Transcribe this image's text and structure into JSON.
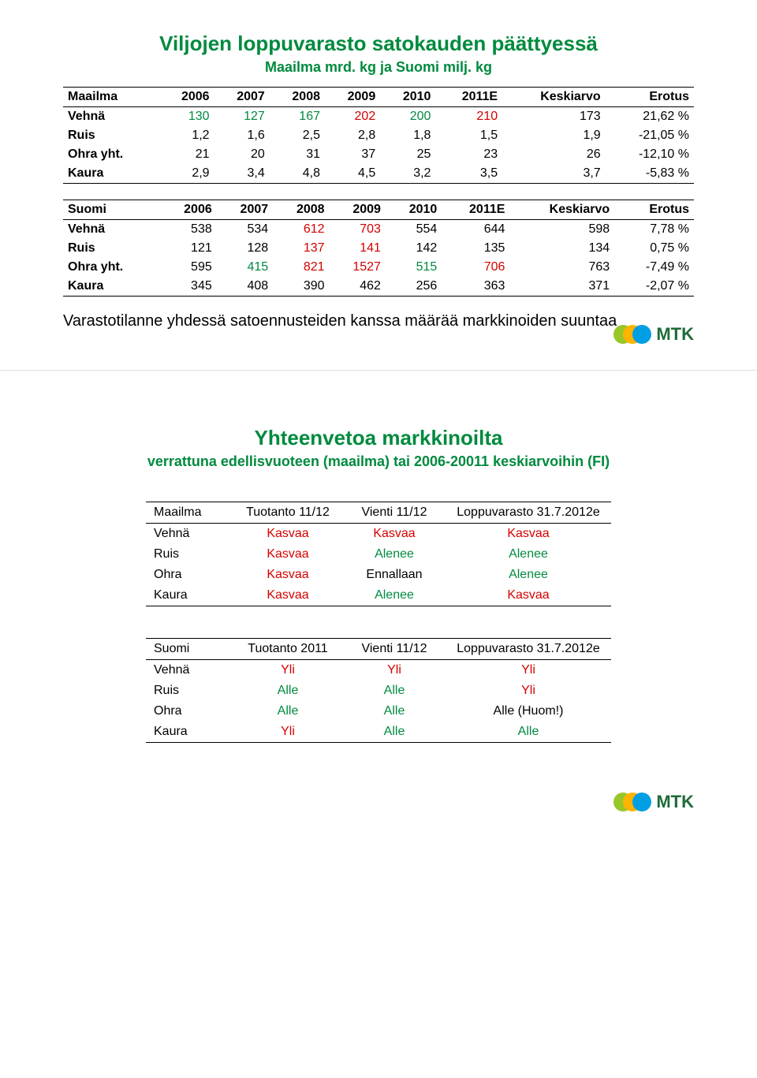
{
  "colors": {
    "green": "#008a3e",
    "red": "#d40000",
    "black": "#000000"
  },
  "slide1": {
    "title": "Viljojen loppuvarasto satokauden päättyessä",
    "subtitle": "Maailma mrd. kg ja Suomi milj. kg",
    "title_color": "#008a3e",
    "subtitle_color": "#008a3e",
    "table_world": {
      "columns": [
        "Maailma",
        "2006",
        "2007",
        "2008",
        "2009",
        "2010",
        "2011E",
        "Keskiarvo",
        "Erotus"
      ],
      "col_colors": [
        "black",
        "black",
        "black",
        "black",
        "black",
        "black",
        "black",
        "black",
        "black"
      ],
      "rows": [
        {
          "label": "Vehnä",
          "cells": [
            "130",
            "127",
            "167",
            "202",
            "200",
            "210",
            "173",
            "21,62 %"
          ],
          "cell_colors": [
            "green",
            "green",
            "green",
            "red",
            "green",
            "red",
            "black",
            "black"
          ]
        },
        {
          "label": "Ruis",
          "cells": [
            "1,2",
            "1,6",
            "2,5",
            "2,8",
            "1,8",
            "1,5",
            "1,9",
            "-21,05 %"
          ],
          "cell_colors": [
            "black",
            "black",
            "black",
            "black",
            "black",
            "black",
            "black",
            "black"
          ]
        },
        {
          "label": "Ohra yht.",
          "cells": [
            "21",
            "20",
            "31",
            "37",
            "25",
            "23",
            "26",
            "-12,10 %"
          ],
          "cell_colors": [
            "black",
            "black",
            "black",
            "black",
            "black",
            "black",
            "black",
            "black"
          ]
        },
        {
          "label": "Kaura",
          "cells": [
            "2,9",
            "3,4",
            "4,8",
            "4,5",
            "3,2",
            "3,5",
            "3,7",
            "-5,83 %"
          ],
          "cell_colors": [
            "black",
            "black",
            "black",
            "black",
            "black",
            "black",
            "black",
            "black"
          ]
        }
      ]
    },
    "table_finland": {
      "columns": [
        "Suomi",
        "2006",
        "2007",
        "2008",
        "2009",
        "2010",
        "2011E",
        "Keskiarvo",
        "Erotus"
      ],
      "rows": [
        {
          "label": "Vehnä",
          "cells": [
            "538",
            "534",
            "612",
            "703",
            "554",
            "644",
            "598",
            "7,78 %"
          ],
          "cell_colors": [
            "black",
            "black",
            "red",
            "red",
            "black",
            "black",
            "black",
            "black"
          ]
        },
        {
          "label": "Ruis",
          "cells": [
            "121",
            "128",
            "137",
            "141",
            "142",
            "135",
            "134",
            "0,75 %"
          ],
          "cell_colors": [
            "black",
            "black",
            "red",
            "red",
            "black",
            "black",
            "black",
            "black"
          ]
        },
        {
          "label": "Ohra yht.",
          "cells": [
            "595",
            "415",
            "821",
            "1527",
            "515",
            "706",
            "763",
            "-7,49 %"
          ],
          "cell_colors": [
            "black",
            "green",
            "red",
            "red",
            "green",
            "red",
            "black",
            "black"
          ]
        },
        {
          "label": "Kaura",
          "cells": [
            "345",
            "408",
            "390",
            "462",
            "256",
            "363",
            "371",
            "-2,07 %"
          ],
          "cell_colors": [
            "black",
            "black",
            "black",
            "black",
            "black",
            "black",
            "black",
            "black"
          ]
        }
      ]
    },
    "note": "Varastotilanne yhdessä satoennusteiden kanssa määrää markkinoiden suuntaa"
  },
  "slide2": {
    "title": "Yhteenvetoa markkinoilta",
    "subtitle": "verrattuna edellisvuoteen (maailma) tai 2006-20011 keskiarvoihin (FI)",
    "title_color": "#008a3e",
    "subtitle_color": "#008a3e",
    "table_world": {
      "columns": [
        "Maailma",
        "Tuotanto 11/12",
        "Vienti 11/12",
        "Loppuvarasto 31.7.2012e"
      ],
      "rows": [
        {
          "label": "Vehnä",
          "cells": [
            "Kasvaa",
            "Kasvaa",
            "Kasvaa"
          ],
          "cell_colors": [
            "red",
            "red",
            "red"
          ]
        },
        {
          "label": "Ruis",
          "cells": [
            "Kasvaa",
            "Alenee",
            "Alenee"
          ],
          "cell_colors": [
            "red",
            "green",
            "green"
          ]
        },
        {
          "label": "Ohra",
          "cells": [
            "Kasvaa",
            "Ennallaan",
            "Alenee"
          ],
          "cell_colors": [
            "red",
            "black",
            "green"
          ]
        },
        {
          "label": "Kaura",
          "cells": [
            "Kasvaa",
            "Alenee",
            "Kasvaa"
          ],
          "cell_colors": [
            "red",
            "green",
            "red"
          ]
        }
      ]
    },
    "table_finland": {
      "columns": [
        "Suomi",
        "Tuotanto 2011",
        "Vienti 11/12",
        "Loppuvarasto 31.7.2012e"
      ],
      "rows": [
        {
          "label": "Vehnä",
          "cells": [
            "Yli",
            "Yli",
            "Yli"
          ],
          "cell_colors": [
            "red",
            "red",
            "red"
          ]
        },
        {
          "label": "Ruis",
          "cells": [
            "Alle",
            "Alle",
            "Yli"
          ],
          "cell_colors": [
            "green",
            "green",
            "red"
          ]
        },
        {
          "label": "Ohra",
          "cells": [
            "Alle",
            "Alle",
            "Alle (Huom!)"
          ],
          "cell_colors": [
            "green",
            "green",
            "black"
          ]
        },
        {
          "label": "Kaura",
          "cells": [
            "Yli",
            "Alle",
            "Alle"
          ],
          "cell_colors": [
            "red",
            "green",
            "green"
          ]
        }
      ]
    }
  },
  "logo_text": "MTK"
}
